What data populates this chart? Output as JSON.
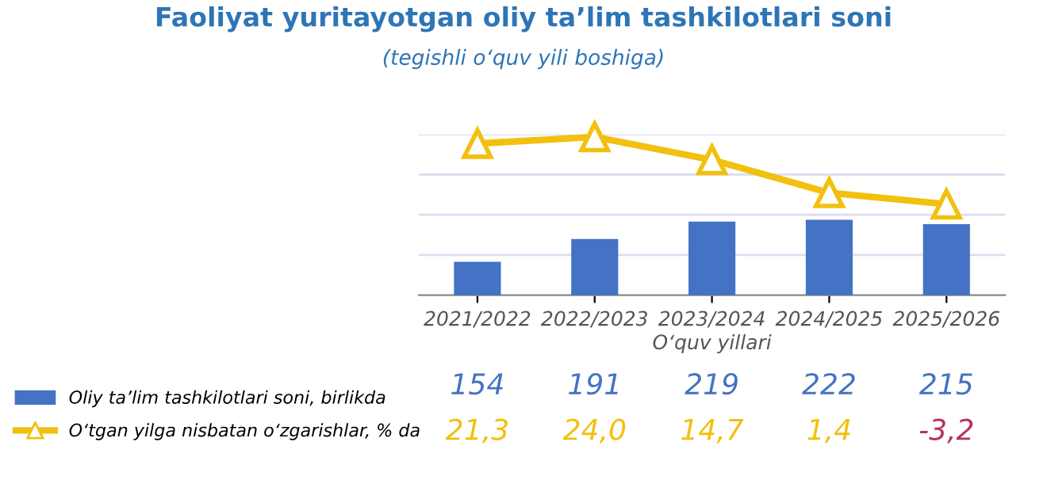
{
  "chart_data": {
    "type": "bar",
    "title": "Faoliyat yuritayotgan oliy ta’lim tashkilotlari soni",
    "subtitle": "(tegishli o‘quv yili boshiga)",
    "xlabel": "O‘quv yillari",
    "categories": [
      "2021/2022",
      "2022/2023",
      "2023/2024",
      "2024/2025",
      "2025/2026"
    ],
    "series": [
      {
        "name": "Oliy ta’lim tashkilotlari soni, birlikda",
        "color": "#4472c4",
        "values": [
          154,
          191,
          219,
          222,
          215
        ],
        "value_labels": [
          "154",
          "191",
          "219",
          "222",
          "215"
        ]
      },
      {
        "name": "O‘tgan yilga nisbatan o‘zgarishlar, % da",
        "type": "line",
        "axis": "y2",
        "color": "#f2c00f",
        "colors": [
          "#f2c00f",
          "#f2c00f",
          "#f2c00f",
          "#f2c00f",
          "#b5325f"
        ],
        "values": [
          21.3,
          24.0,
          14.7,
          1.4,
          -3.2
        ],
        "value_labels": [
          "21,3",
          "24,0",
          "14,7",
          "1,4",
          "-3,2"
        ]
      }
    ],
    "ylim": [
      100,
      360
    ],
    "yticks": [
      {
        "value": 165,
        "label": null
      },
      {
        "value": 230,
        "label": null
      },
      {
        "value": 295,
        "label": null
      },
      {
        "value": 360,
        "label": null
      }
    ],
    "y2lim": [
      -40,
      25
    ],
    "grid": "y",
    "legend": "bottom left",
    "tick_labels": "x",
    "marker": "triangle"
  }
}
